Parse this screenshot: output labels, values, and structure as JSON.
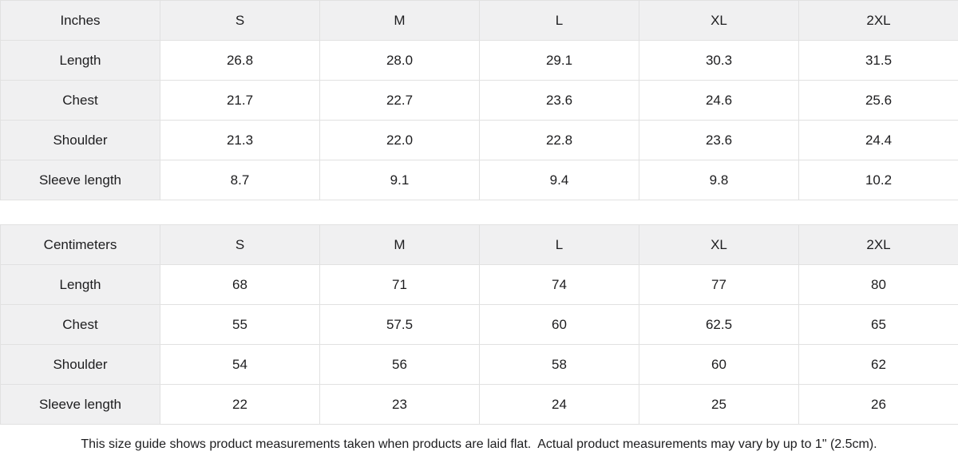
{
  "colors": {
    "header_bg": "#f0f0f1",
    "border": "#e1e1e1",
    "text": "#1d1d1f",
    "background": "#ffffff"
  },
  "tables": [
    {
      "unit_label": "Inches",
      "columns": [
        "S",
        "M",
        "L",
        "XL",
        "2XL"
      ],
      "rows": [
        {
          "label": "Length",
          "values": [
            "26.8",
            "28.0",
            "29.1",
            "30.3",
            "31.5"
          ]
        },
        {
          "label": "Chest",
          "values": [
            "21.7",
            "22.7",
            "23.6",
            "24.6",
            "25.6"
          ]
        },
        {
          "label": "Shoulder",
          "values": [
            "21.3",
            "22.0",
            "22.8",
            "23.6",
            "24.4"
          ]
        },
        {
          "label": "Sleeve length",
          "values": [
            "8.7",
            "9.1",
            "9.4",
            "9.8",
            "10.2"
          ]
        }
      ]
    },
    {
      "unit_label": "Centimeters",
      "columns": [
        "S",
        "M",
        "L",
        "XL",
        "2XL"
      ],
      "rows": [
        {
          "label": "Length",
          "values": [
            "68",
            "71",
            "74",
            "77",
            "80"
          ]
        },
        {
          "label": "Chest",
          "values": [
            "55",
            "57.5",
            "60",
            "62.5",
            "65"
          ]
        },
        {
          "label": "Shoulder",
          "values": [
            "54",
            "56",
            "58",
            "60",
            "62"
          ]
        },
        {
          "label": "Sleeve length",
          "values": [
            "22",
            "23",
            "24",
            "25",
            "26"
          ]
        }
      ]
    }
  ],
  "footer": {
    "note": "This size guide shows product measurements taken when products are laid flat.  Actual product measurements may vary by up to 1\" (2.5cm)."
  }
}
